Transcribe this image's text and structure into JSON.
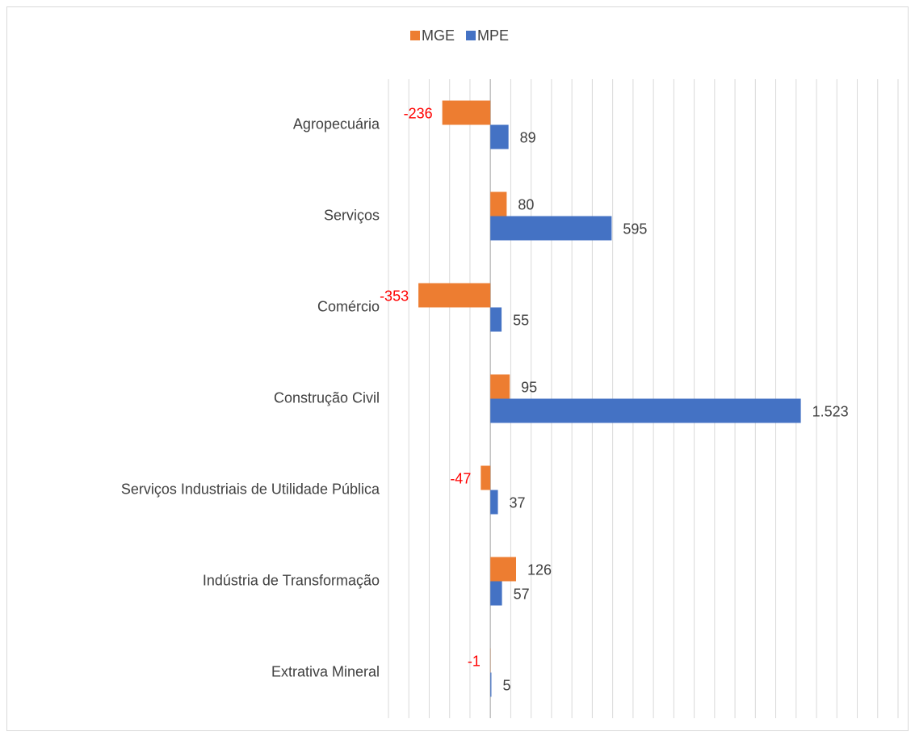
{
  "chart_data": {
    "type": "hbar",
    "categories": [
      "Agropecuária",
      "Serviços",
      "Comércio",
      "Construção Civil",
      "Serviços Industriais de Utilidade Pública",
      "Indústria de Transformação",
      "Extrativa Mineral"
    ],
    "series": [
      {
        "name": "MGE",
        "color": "#ed7d31",
        "values": [
          -236,
          80,
          -353,
          95,
          -47,
          126,
          -1
        ],
        "value_labels": [
          "-236",
          "80",
          "-353",
          "95",
          "-47",
          "126",
          "-1"
        ]
      },
      {
        "name": "MPE",
        "color": "#4472c4",
        "values": [
          89,
          595,
          55,
          1523,
          37,
          57,
          5
        ],
        "value_labels": [
          "89",
          "595",
          "55",
          "1.523",
          "37",
          "57",
          "5"
        ]
      }
    ],
    "xlim": [
      -500,
      2000
    ],
    "xticks": [
      -500,
      -400,
      -300,
      -200,
      -100,
      0,
      100,
      200,
      300,
      400,
      500,
      600,
      700,
      800,
      900,
      1000,
      1100,
      1200,
      1300,
      1400,
      1500,
      1600,
      1700,
      1800,
      1900,
      2000
    ],
    "grid": true,
    "legend": "top",
    "label_color": "#404040",
    "negative_label_color": "#ff0000"
  }
}
